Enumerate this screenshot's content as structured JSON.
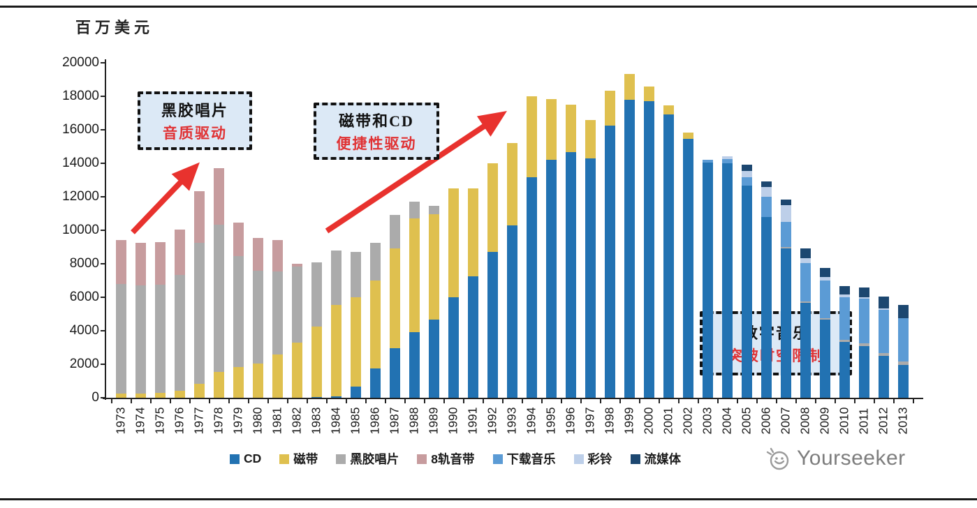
{
  "page": {
    "unit_label": "百万美元",
    "watermark": "Yourseeker"
  },
  "annotations": {
    "box1": {
      "line1": "黑胶唱片",
      "line2": "音质驱动"
    },
    "box2": {
      "line1": "磁带和CD",
      "line2": "便捷性驱动"
    },
    "box3": {
      "line1": "数字音乐",
      "line2": "突破时空限制"
    }
  },
  "chart_data": {
    "type": "bar",
    "stacked": true,
    "title": "",
    "ylabel": "百万美元",
    "xlabel": "",
    "ylim": [
      0,
      20000
    ],
    "ytick_step": 2000,
    "grid": false,
    "legend_position": "bottom",
    "categories": [
      "1973",
      "1974",
      "1975",
      "1976",
      "1977",
      "1978",
      "1979",
      "1980",
      "1981",
      "1982",
      "1983",
      "1984",
      "1985",
      "1986",
      "1987",
      "1988",
      "1989",
      "1990",
      "1991",
      "1992",
      "1993",
      "1994",
      "1995",
      "1996",
      "1997",
      "1998",
      "1999",
      "2000",
      "2001",
      "2002",
      "2003",
      "2004",
      "2005",
      "2006",
      "2007",
      "2008",
      "2009",
      "2010",
      "2011",
      "2012",
      "2013"
    ],
    "series": [
      {
        "name": "CD",
        "color": "#2272B2",
        "values": [
          0,
          0,
          0,
          0,
          0,
          0,
          0,
          0,
          0,
          0,
          50,
          100,
          650,
          1750,
          2950,
          3900,
          4650,
          6000,
          7250,
          8700,
          10300,
          13150,
          14200,
          14650,
          14300,
          16250,
          17800,
          17700,
          16900,
          15450,
          14050,
          14000,
          12650,
          10800,
          8900,
          5650,
          4650,
          3350,
          3100,
          2500,
          1950
        ]
      },
      {
        "name": "磁带",
        "color": "#DFC04F",
        "values": [
          250,
          250,
          300,
          400,
          850,
          1550,
          1850,
          2050,
          2600,
          3300,
          4200,
          5450,
          5350,
          5250,
          5950,
          6800,
          6300,
          6500,
          5250,
          5300,
          4900,
          4850,
          3650,
          2850,
          2300,
          2100,
          1550,
          900,
          550,
          400,
          0,
          0,
          0,
          0,
          0,
          0,
          0,
          0,
          0,
          0,
          0
        ]
      },
      {
        "name": "黑胶唱片",
        "color": "#ABABAB",
        "values": [
          6550,
          6450,
          6450,
          6950,
          8400,
          8800,
          6600,
          5550,
          4950,
          4550,
          3850,
          3250,
          2700,
          2250,
          2000,
          1000,
          500,
          0,
          0,
          0,
          0,
          0,
          0,
          0,
          0,
          0,
          0,
          0,
          0,
          0,
          0,
          0,
          0,
          0,
          100,
          100,
          100,
          100,
          150,
          150,
          200
        ]
      },
      {
        "name": "8轨音带",
        "color": "#C79C9E",
        "values": [
          2600,
          2550,
          2550,
          2700,
          3100,
          3350,
          2000,
          1950,
          1850,
          150,
          0,
          0,
          0,
          0,
          0,
          0,
          0,
          0,
          0,
          0,
          0,
          0,
          0,
          0,
          0,
          0,
          0,
          0,
          0,
          0,
          0,
          0,
          0,
          0,
          0,
          0,
          0,
          0,
          0,
          0,
          0
        ]
      },
      {
        "name": "下载音乐",
        "color": "#5B9BD5",
        "values": [
          0,
          0,
          0,
          0,
          0,
          0,
          0,
          0,
          0,
          0,
          0,
          0,
          0,
          0,
          0,
          0,
          0,
          0,
          0,
          0,
          0,
          0,
          0,
          0,
          0,
          0,
          0,
          0,
          0,
          0,
          150,
          250,
          500,
          1200,
          1500,
          2300,
          2250,
          2550,
          2650,
          2600,
          2600
        ]
      },
      {
        "name": "彩铃",
        "color": "#BDCFE9",
        "values": [
          0,
          0,
          0,
          0,
          0,
          0,
          0,
          0,
          0,
          0,
          0,
          0,
          0,
          0,
          0,
          0,
          0,
          0,
          0,
          0,
          0,
          0,
          0,
          0,
          0,
          0,
          0,
          0,
          0,
          0,
          0,
          150,
          400,
          600,
          1000,
          300,
          200,
          160,
          100,
          100,
          0
        ]
      },
      {
        "name": "流媒体",
        "color": "#1C4770",
        "values": [
          0,
          0,
          0,
          0,
          0,
          0,
          0,
          0,
          0,
          0,
          0,
          0,
          0,
          0,
          0,
          0,
          0,
          0,
          0,
          0,
          0,
          0,
          0,
          0,
          0,
          0,
          0,
          0,
          0,
          0,
          0,
          0,
          350,
          300,
          350,
          550,
          550,
          490,
          600,
          700,
          800
        ]
      }
    ]
  }
}
